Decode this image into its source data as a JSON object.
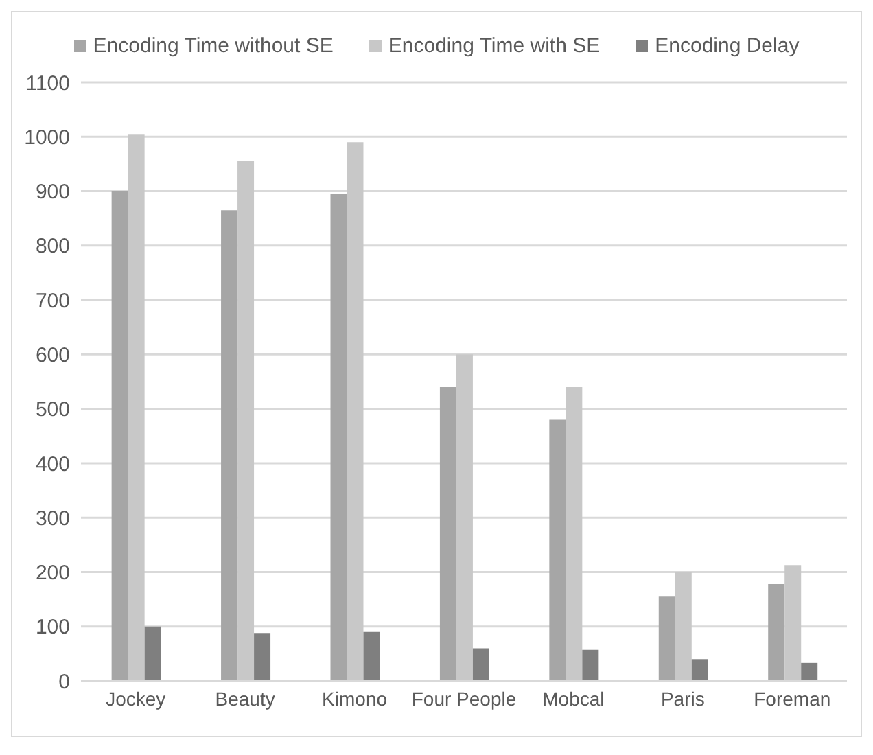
{
  "chart_data": {
    "type": "bar",
    "categories": [
      "Jockey",
      "Beauty",
      "Kimono",
      "Four People",
      "Mobcal",
      "Paris",
      "Foreman"
    ],
    "series": [
      {
        "name": "Encoding Time without SE",
        "color": "#a6a6a6",
        "values": [
          900,
          865,
          895,
          540,
          480,
          155,
          178
        ]
      },
      {
        "name": "Encoding Time with SE",
        "color": "#c8c8c8",
        "values": [
          1005,
          955,
          990,
          600,
          540,
          200,
          213
        ]
      },
      {
        "name": "Encoding Delay",
        "color": "#7f7f7f",
        "values": [
          100,
          88,
          90,
          60,
          57,
          40,
          33
        ]
      }
    ],
    "ylim": [
      0,
      1100
    ],
    "yticks": [
      0,
      100,
      200,
      300,
      400,
      500,
      600,
      700,
      800,
      900,
      1000,
      1100
    ],
    "grid": "y",
    "legend": "top"
  }
}
